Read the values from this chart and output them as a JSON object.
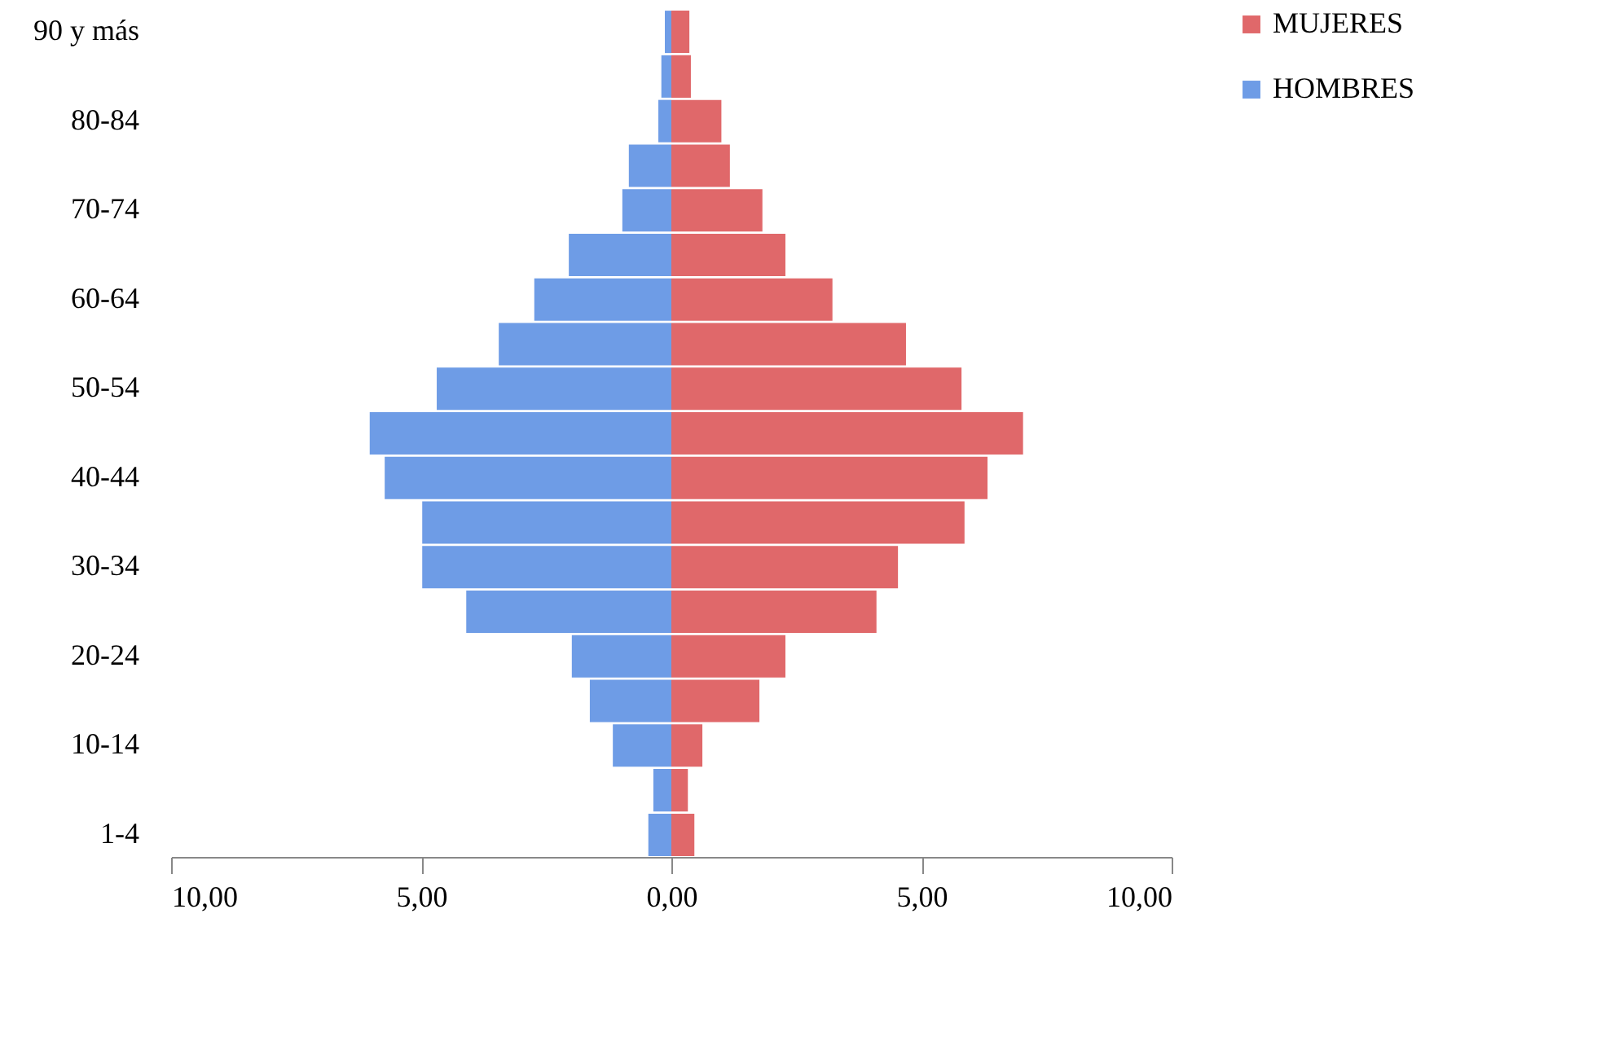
{
  "chart_data": {
    "type": "bar",
    "orientation": "horizontal",
    "stacked": true,
    "categories": [
      "90 y más",
      null,
      "80-84",
      null,
      "70-74",
      null,
      "60-64",
      null,
      "50-54",
      null,
      "40-44",
      null,
      "30-34",
      null,
      "20-24",
      null,
      "10-14",
      null,
      "1-4"
    ],
    "series": [
      {
        "name": "MUJERES",
        "color": "#e0686a",
        "values": [
          0.36,
          0.39,
          1.0,
          1.17,
          1.82,
          2.28,
          3.22,
          4.69,
          5.8,
          7.03,
          6.32,
          5.86,
          4.53,
          4.1,
          2.28,
          1.76,
          0.62,
          0.33,
          0.46
        ]
      },
      {
        "name": "HOMBRES",
        "color": "#6e9ce6",
        "values": [
          -0.13,
          -0.2,
          -0.26,
          -0.85,
          -0.98,
          -2.05,
          -2.74,
          -3.45,
          -4.69,
          -6.03,
          -5.73,
          -4.98,
          -4.98,
          -4.1,
          -1.99,
          -1.63,
          -1.17,
          -0.36,
          -0.46
        ]
      }
    ],
    "xlim": [
      -10,
      10
    ],
    "xticks": [
      {
        "value": -10,
        "label": "10,00"
      },
      {
        "value": -5,
        "label": "5,00"
      },
      {
        "value": 0,
        "label": "0,00"
      },
      {
        "value": 5,
        "label": "5,00"
      },
      {
        "value": 10,
        "label": "10,00"
      }
    ],
    "grid": false,
    "legend": "right"
  }
}
